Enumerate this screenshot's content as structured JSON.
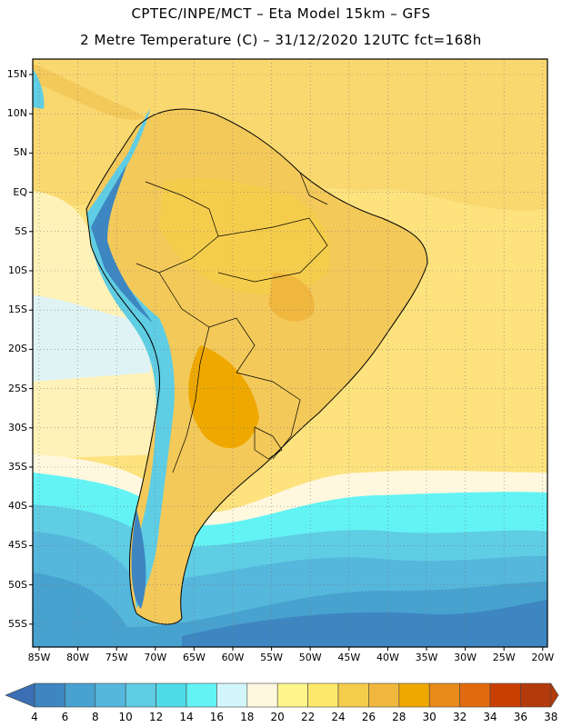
{
  "header": {
    "line1": "CPTEC/INPE/MCT –  Eta Model 15km – GFS",
    "line2": "2 Metre Temperature (C) – 31/12/2020 12UTC fct=168h"
  },
  "map": {
    "lat_labels": [
      "15N",
      "10N",
      "5N",
      "EQ",
      "5S",
      "10S",
      "15S",
      "20S",
      "25S",
      "30S",
      "35S",
      "40S",
      "45S",
      "50S",
      "55S"
    ],
    "lon_labels": [
      "85W",
      "80W",
      "75W",
      "70W",
      "65W",
      "60W",
      "55W",
      "50W",
      "45W",
      "40W",
      "35W",
      "30W",
      "25W",
      "20W"
    ],
    "grid": "dotted"
  },
  "colorbar": {
    "labels": [
      "4",
      "6",
      "8",
      "10",
      "12",
      "14",
      "16",
      "18",
      "20",
      "22",
      "24",
      "26",
      "28",
      "30",
      "32",
      "34",
      "36",
      "38"
    ],
    "colors": [
      "#3a6fb3",
      "#3d86c1",
      "#48a2cf",
      "#55b7dc",
      "#5fcde3",
      "#4fdbe8",
      "#63f3f4",
      "#d3f6fb",
      "#fff8df",
      "#fff58a",
      "#fde86a",
      "#f5cd4c",
      "#f0b73f",
      "#efa800",
      "#e98b1a",
      "#e06b0d",
      "#c84000",
      "#b33a0a"
    ]
  }
}
